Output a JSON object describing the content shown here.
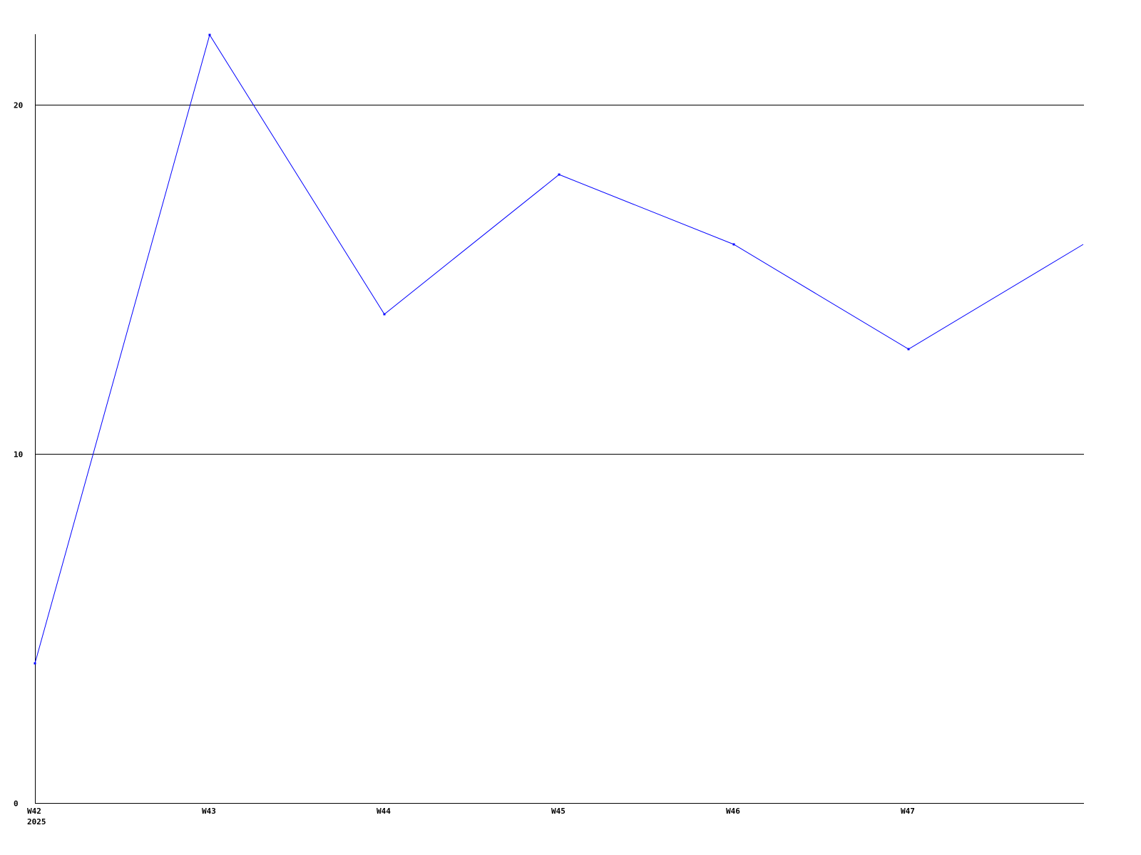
{
  "chart_data": {
    "type": "line",
    "title": "",
    "xlabel": "",
    "ylabel": "",
    "categories": [
      "W42",
      "W43",
      "W44",
      "W45",
      "W46",
      "W47",
      ""
    ],
    "x_sublabel": "2025",
    "ylim": [
      0,
      22
    ],
    "yticks": [
      0,
      10,
      20
    ],
    "grid": true,
    "series": [
      {
        "values": [
          4,
          22,
          14,
          18,
          16,
          13,
          16
        ],
        "color": "#0000ff"
      }
    ]
  }
}
